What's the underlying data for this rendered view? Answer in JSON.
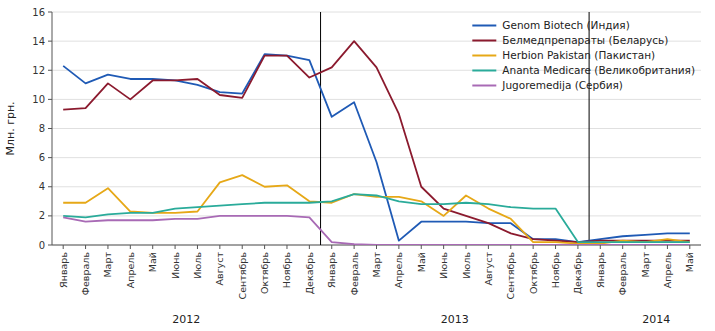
{
  "chart_data": {
    "type": "line",
    "categories": [
      "Январь",
      "Февраль",
      "Март",
      "Апрель",
      "Май",
      "Июнь",
      "Июль",
      "Август",
      "Сентябрь",
      "Октябрь",
      "Ноябрь",
      "Декабрь",
      "Январь",
      "Февраль",
      "Март",
      "Апрель",
      "Май",
      "Июнь",
      "Июль",
      "Август",
      "Сентябрь",
      "Октябрь",
      "Ноябрь",
      "Декабрь",
      "Январь",
      "Февраль",
      "Март",
      "Апрель",
      "Май"
    ],
    "series": [
      {
        "name": "Genom Biotech (Индия)",
        "color": "#1f5ab5",
        "values": [
          12.3,
          11.1,
          11.7,
          11.4,
          11.4,
          11.3,
          11.0,
          10.5,
          10.4,
          13.1,
          13.0,
          12.7,
          8.8,
          9.8,
          5.7,
          0.3,
          1.6,
          1.6,
          1.6,
          1.5,
          1.5,
          0.4,
          0.4,
          0.2,
          0.4,
          0.6,
          0.7,
          0.8,
          0.8
        ]
      },
      {
        "name": "Белмедпрепараты (Беларусь)",
        "color": "#8b1a2e",
        "values": [
          9.3,
          9.4,
          11.1,
          10.0,
          11.3,
          11.3,
          11.4,
          10.3,
          10.1,
          13.0,
          13.0,
          11.5,
          12.2,
          14.0,
          12.2,
          9.0,
          4.0,
          2.5,
          2.0,
          1.5,
          0.8,
          0.4,
          0.3,
          0.2,
          0.3,
          0.3,
          0.3,
          0.3,
          0.3
        ]
      },
      {
        "name": "Herbion Pakistan (Пакистан)",
        "color": "#e6a817",
        "values": [
          2.9,
          2.9,
          3.9,
          2.3,
          2.2,
          2.2,
          2.3,
          4.3,
          4.8,
          4.0,
          4.1,
          3.0,
          2.9,
          3.5,
          3.3,
          3.3,
          3.0,
          2.0,
          3.4,
          2.5,
          1.8,
          0.2,
          0.2,
          0.1,
          0.1,
          0.3,
          0.2,
          0.4,
          0.2
        ]
      },
      {
        "name": "Ananta Medicare (Великобритания)",
        "color": "#2aab9a",
        "values": [
          2.0,
          1.9,
          2.1,
          2.2,
          2.2,
          2.5,
          2.6,
          2.7,
          2.8,
          2.9,
          2.9,
          2.9,
          3.0,
          3.5,
          3.4,
          3.0,
          2.8,
          2.8,
          2.9,
          2.8,
          2.6,
          2.5,
          2.5,
          0.2,
          0.2,
          0.2,
          0.2,
          0.2,
          0.2
        ]
      },
      {
        "name": "Jugoremedija (Сербия)",
        "color": "#a86ab5",
        "values": [
          1.9,
          1.6,
          1.7,
          1.7,
          1.7,
          1.8,
          1.8,
          2.0,
          2.0,
          2.0,
          2.0,
          1.9,
          0.2,
          0.05,
          0.0,
          0.0,
          0.0,
          0.0,
          0.0,
          0.0,
          0.0,
          0.0,
          0.0,
          0.0,
          0.0,
          0.0,
          0.0,
          0.0,
          0.0
        ]
      }
    ],
    "ylabel": "Млн. грн.",
    "ylim": [
      0,
      16
    ],
    "yticks": [
      0,
      2,
      4,
      6,
      8,
      10,
      12,
      14,
      16
    ],
    "grid": true,
    "legend": "upper right",
    "vlines": [
      11.5,
      23.5
    ],
    "annotations": [
      {
        "text": "2012",
        "x": 5.5
      },
      {
        "text": "2013",
        "x": 17.5
      },
      {
        "text": "2014",
        "x": 26.5
      }
    ]
  }
}
